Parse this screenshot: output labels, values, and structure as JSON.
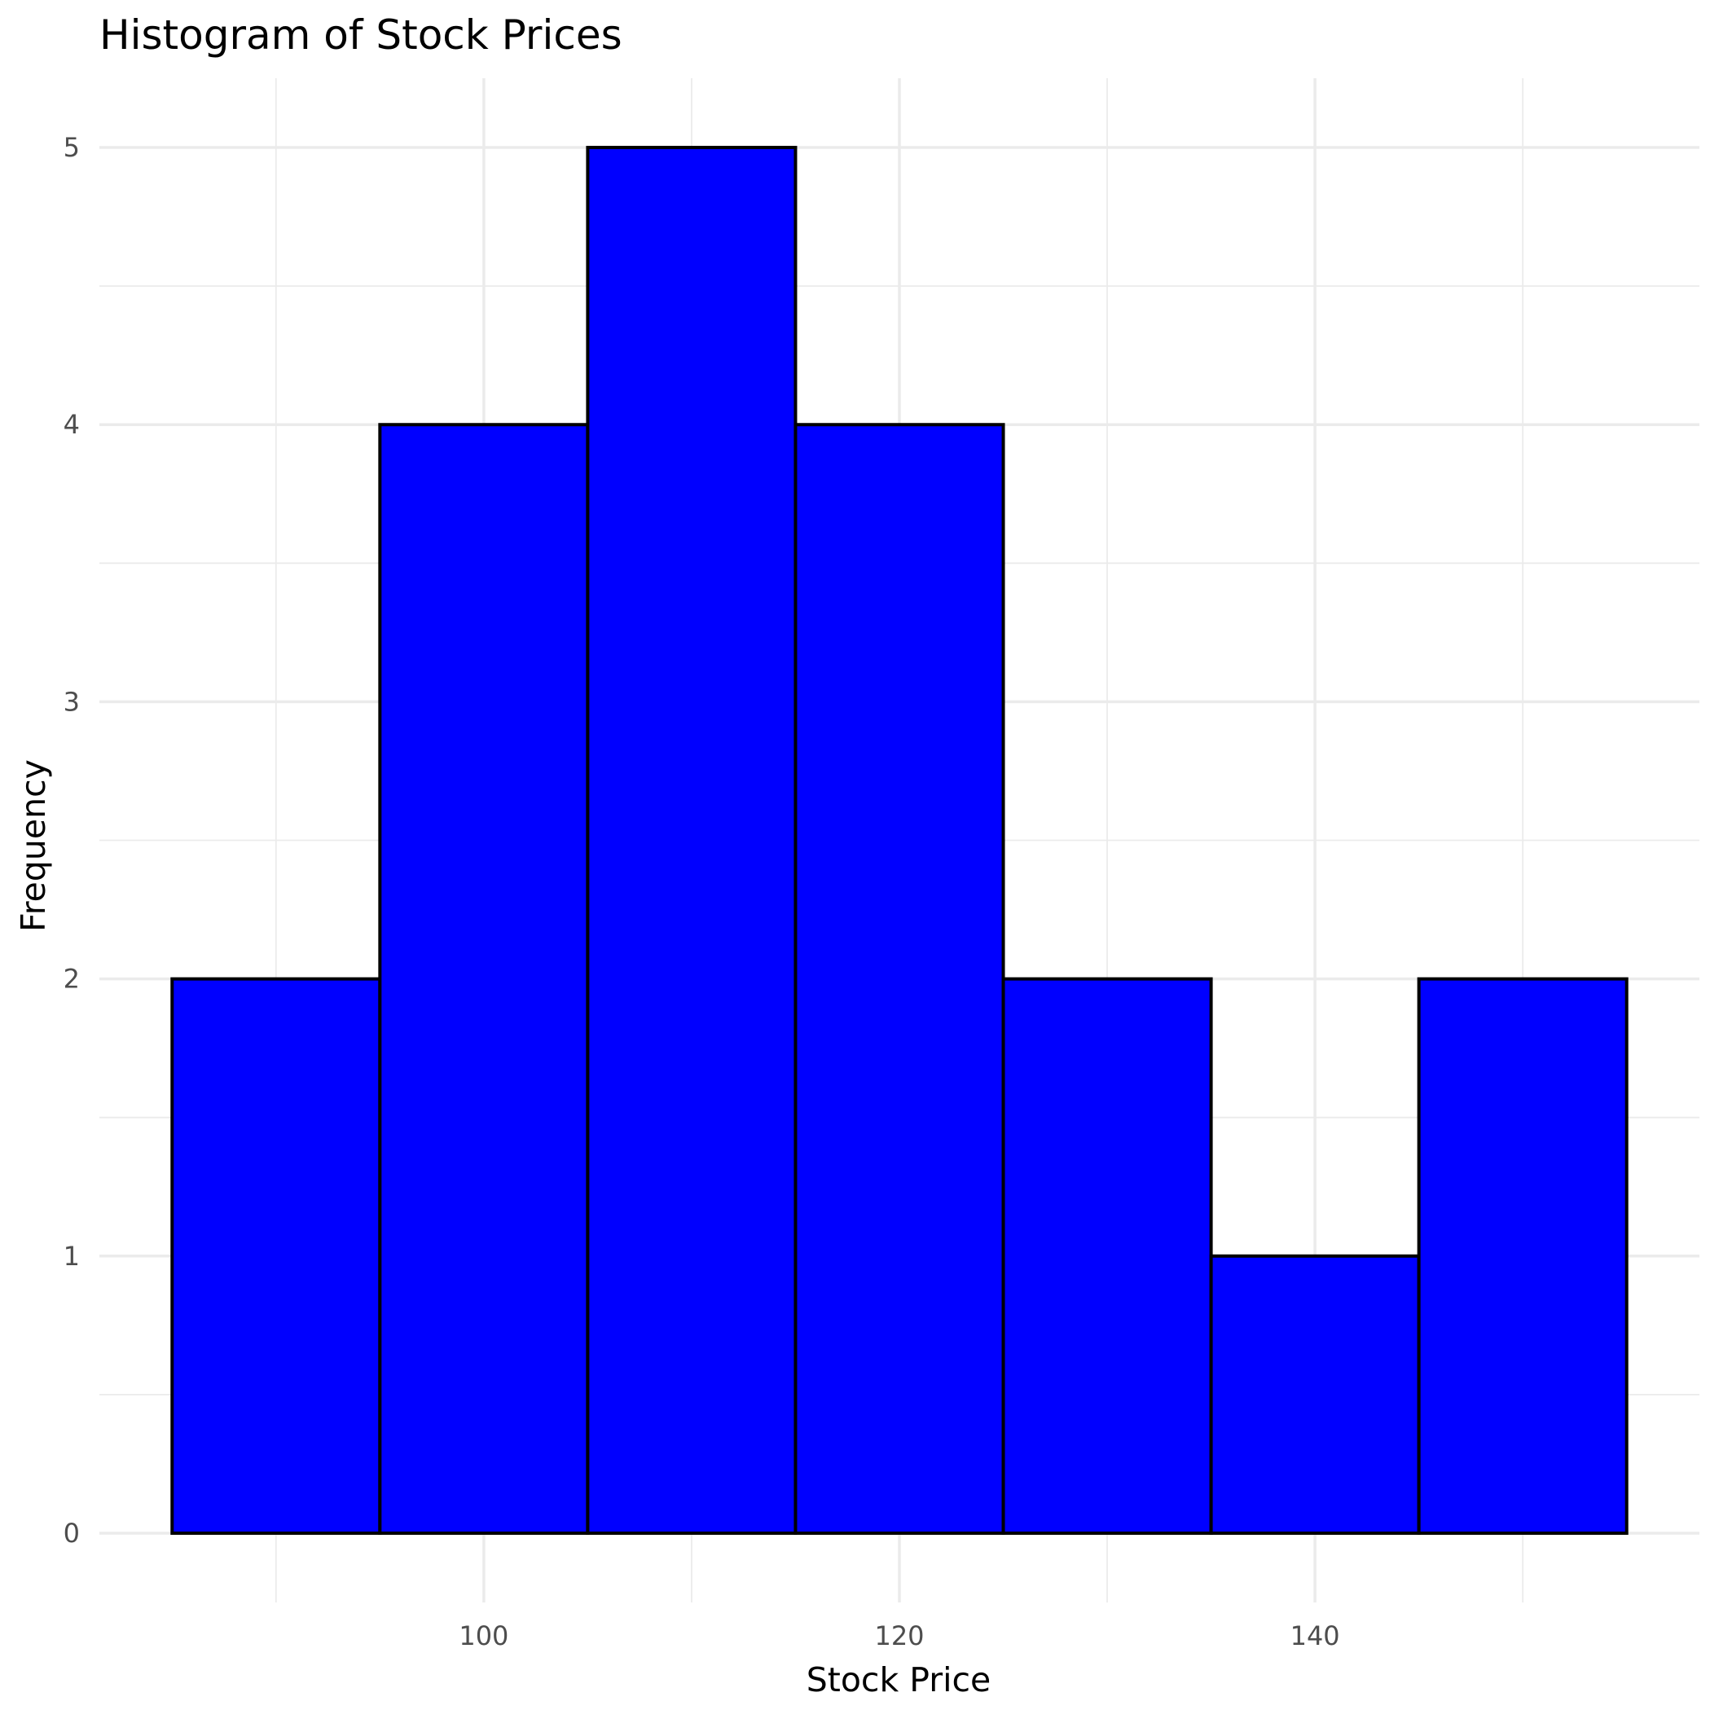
{
  "chart_data": {
    "type": "histogram",
    "title": "Histogram of Stock Prices",
    "xlabel": "Stock Price",
    "ylabel": "Frequency",
    "bins": [
      {
        "start": 85,
        "end": 95,
        "count": 2
      },
      {
        "start": 95,
        "end": 105,
        "count": 4
      },
      {
        "start": 105,
        "end": 115,
        "count": 5
      },
      {
        "start": 115,
        "end": 125,
        "count": 4
      },
      {
        "start": 125,
        "end": 135,
        "count": 2
      },
      {
        "start": 135,
        "end": 145,
        "count": 1
      },
      {
        "start": 145,
        "end": 155,
        "count": 2
      }
    ],
    "xlim": [
      81.5,
      158.5
    ],
    "ylim": [
      -0.25,
      5.25
    ],
    "x_major_ticks": [
      100,
      120,
      140
    ],
    "x_minor_ticks": [
      90,
      110,
      130,
      150
    ],
    "y_major_ticks": [
      0,
      1,
      2,
      3,
      4,
      5
    ],
    "y_minor_ticks": [
      0.5,
      1.5,
      2.5,
      3.5,
      4.5
    ],
    "bar_fill": "#0000ff",
    "bar_outline": "#000000",
    "grid": true
  }
}
